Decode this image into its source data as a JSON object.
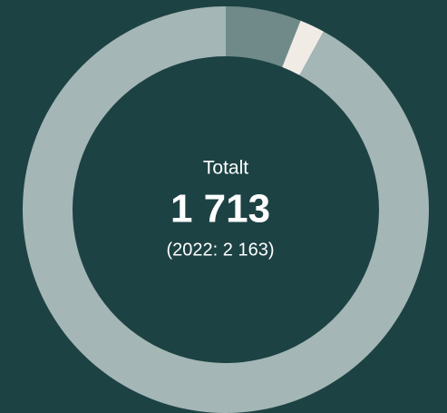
{
  "chart_data": {
    "type": "donut",
    "categories": [
      null,
      null,
      null
    ],
    "values": [
      6,
      2,
      92
    ],
    "colors": [
      "#6f8a88",
      "#f1ebe6",
      "#a4b6b5"
    ],
    "center_title": "Totalt",
    "center_value": "1 713",
    "center_note": "(2022: 2 163)"
  }
}
